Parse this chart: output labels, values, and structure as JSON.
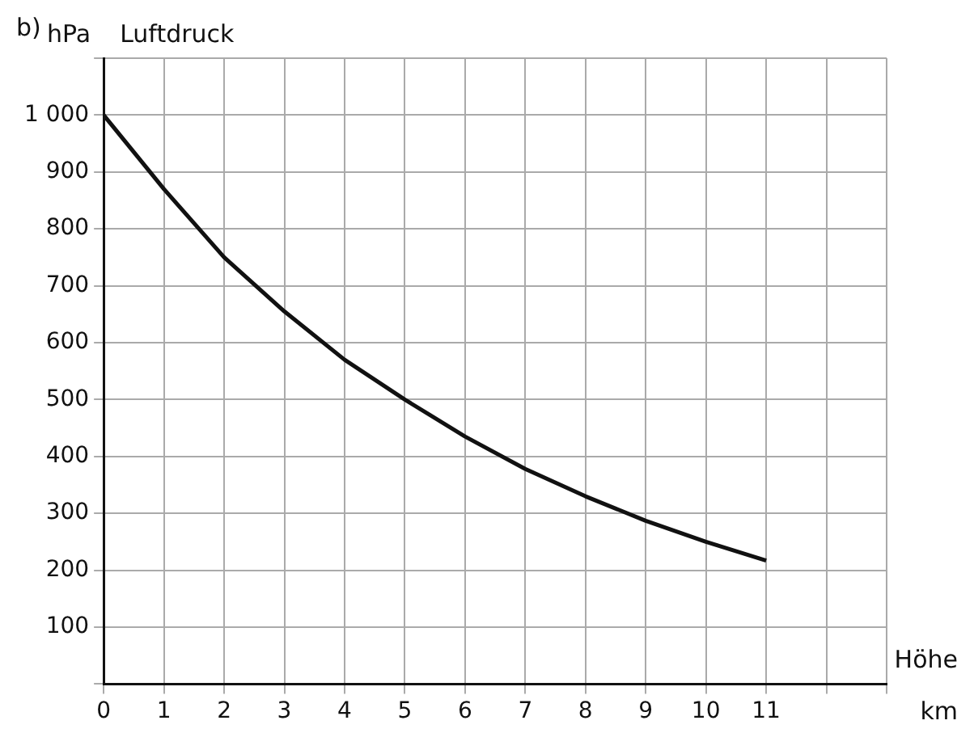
{
  "chart_data": {
    "type": "line",
    "title": "b)",
    "xlabel": "Höhe",
    "ylabel": "Luftdruck",
    "annotations": [
      "hPa",
      "km"
    ],
    "x": [
      0,
      1,
      2,
      3,
      4,
      5,
      6,
      7,
      8,
      9,
      10,
      11
    ],
    "series": [
      {
        "color": "#111111",
        "values": [
          1000,
          870,
          750,
          655,
          570,
          500,
          435,
          378,
          330,
          287,
          250,
          217
        ]
      }
    ],
    "xlim": [
      0,
      13
    ],
    "xticks": [
      0,
      1,
      2,
      3,
      4,
      5,
      6,
      7,
      8,
      9,
      10,
      11,
      {
        "value": 12,
        "label": null
      },
      {
        "value": 13,
        "label": null
      }
    ],
    "ylim": [
      0,
      1100
    ],
    "yticks": [
      {
        "value": 0,
        "label": null
      },
      100,
      200,
      300,
      400,
      500,
      600,
      700,
      800,
      900,
      {
        "value": 1000,
        "label": "1 000"
      },
      {
        "value": 1100,
        "label": null
      }
    ],
    "grid": true,
    "legend": false,
    "marker": "none",
    "line_style": "solid"
  }
}
